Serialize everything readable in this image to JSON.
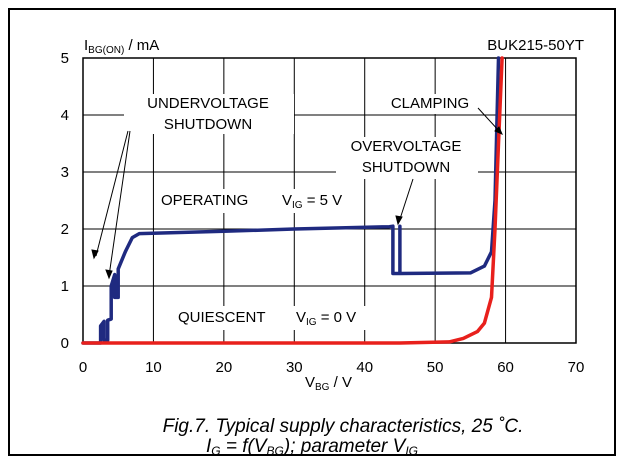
{
  "chart_data": {
    "type": "line",
    "title": "BUK215-50YT",
    "ylabel": {
      "main": "I",
      "sub": "BG(ON)",
      "unit": " / mA"
    },
    "xlabel": {
      "main": "V",
      "sub": "BG",
      "unit": " / V"
    },
    "xlim": [
      0,
      70
    ],
    "ylim": [
      0,
      5
    ],
    "xticks": [
      "0",
      "10",
      "20",
      "30",
      "40",
      "50",
      "60",
      "70"
    ],
    "yticks": [
      "0",
      "1",
      "2",
      "3",
      "4",
      "5"
    ],
    "grid": true,
    "series": [
      {
        "color": "#1f2a80",
        "points": [
          [
            0.0,
            0.0
          ],
          [
            2.5,
            0.0
          ],
          [
            2.5,
            0.3
          ],
          [
            3.0,
            0.38
          ],
          [
            3.0,
            0.05
          ],
          [
            3.5,
            0.05
          ],
          [
            3.5,
            0.4
          ],
          [
            4.0,
            0.42
          ],
          [
            4.0,
            1.0
          ],
          [
            4.5,
            1.2
          ],
          [
            4.5,
            0.8
          ],
          [
            5.0,
            0.8
          ],
          [
            5.0,
            1.3
          ],
          [
            6.0,
            1.6
          ],
          [
            7.0,
            1.85
          ],
          [
            8.0,
            1.92
          ],
          [
            20.0,
            1.96
          ],
          [
            30.0,
            2.0
          ],
          [
            43.5,
            2.04
          ],
          [
            44.0,
            2.05
          ],
          [
            44.0,
            1.22
          ],
          [
            45.0,
            1.22
          ],
          [
            45.0,
            2.05
          ],
          [
            45.0,
            1.22
          ],
          [
            55.0,
            1.23
          ],
          [
            57.0,
            1.35
          ],
          [
            58.0,
            1.6
          ],
          [
            58.5,
            2.5
          ],
          [
            59.0,
            5.0
          ]
        ]
      },
      {
        "color": "#e8201c",
        "points": [
          [
            0.0,
            0.0
          ],
          [
            45.0,
            0.0
          ],
          [
            52.0,
            0.02
          ],
          [
            54.0,
            0.08
          ],
          [
            56.0,
            0.2
          ],
          [
            57.0,
            0.35
          ],
          [
            58.0,
            0.8
          ],
          [
            58.5,
            2.0
          ],
          [
            59.0,
            3.5
          ],
          [
            59.5,
            5.0
          ]
        ]
      }
    ],
    "annotations": {
      "undervoltage": [
        "UNDERVOLTAGE",
        "SHUTDOWN"
      ],
      "overvoltage": [
        "OVERVOLTAGE",
        "SHUTDOWN"
      ],
      "clamping": "CLAMPING",
      "operating": {
        "text": "OPERATING",
        "eq_main": "V",
        "eq_sub": "IG",
        "eq_rest": " = 5 V"
      },
      "quiescent": {
        "text": "QUIESCENT",
        "eq_main": "V",
        "eq_sub": "IG",
        "eq_rest": " = 0 V"
      }
    }
  },
  "caption": {
    "line1": "Fig.7.    Typical supply characteristics, 25 ˚C.",
    "l2_a": "I",
    "l2_a_sub": "G",
    "l2_b": " = f(V",
    "l2_b_sub": "BG",
    "l2_c": "); parameter V",
    "l2_c_sub": "IG"
  }
}
